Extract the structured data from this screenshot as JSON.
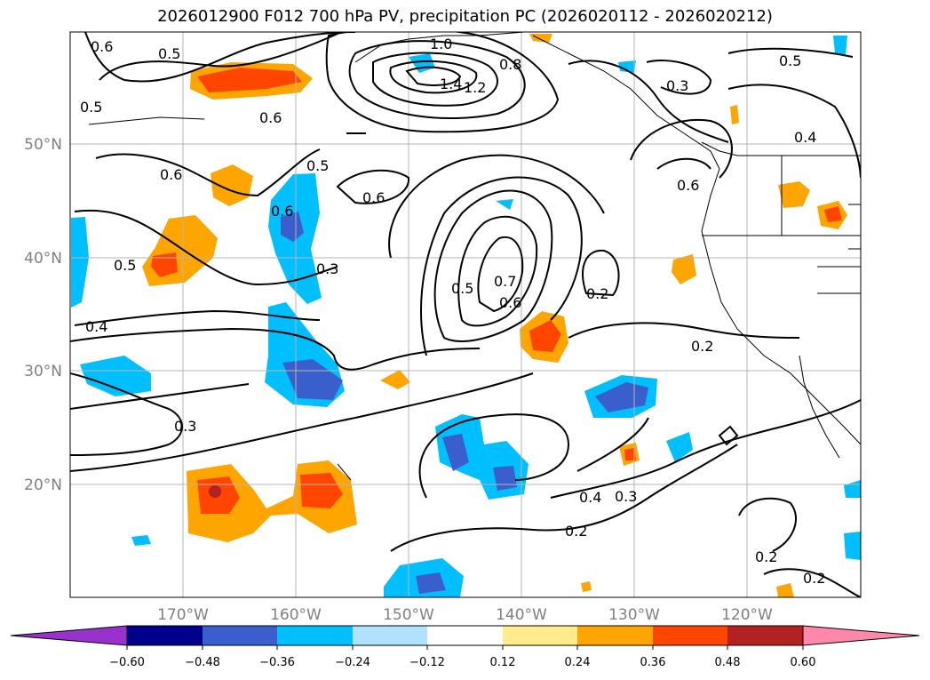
{
  "title": "2026012900 F012 700 hPa PV, precipitation PC (2026020112 - 2026020212)",
  "lat_labels": [
    "50°N",
    "40°N",
    "30°N",
    "20°N"
  ],
  "lon_labels": [
    "170°W",
    "160°W",
    "150°W",
    "140°W",
    "130°W",
    "120°W"
  ],
  "contour_labels": [
    "0.6",
    "0.5",
    "0.5",
    "1.0",
    "0.8",
    "1.4",
    "1.2",
    "0.5",
    "0.3",
    "0.6",
    "0.4",
    "0.5",
    "0.6",
    "0.6",
    "0.6",
    "0.6",
    "0.5",
    "0.3",
    "0.5",
    "0.7",
    "0.6",
    "0.2",
    "0.4",
    "0.2",
    "0.3",
    "0.4",
    "0.3",
    "0.2",
    "0.2",
    "0.2"
  ],
  "colorbar": {
    "ticks": [
      "−0.60",
      "−0.48",
      "−0.36",
      "−0.24",
      "−0.12",
      "0.12",
      "0.24",
      "0.36",
      "0.48",
      "0.60"
    ],
    "colors": [
      "#9932cc",
      "#00008b",
      "#3a5fcd",
      "#00bfff",
      "#b0e2ff",
      "#ffffff",
      "#ffeb8c",
      "#ffa500",
      "#ff4500",
      "#b22222",
      "#ff88aa"
    ]
  }
}
